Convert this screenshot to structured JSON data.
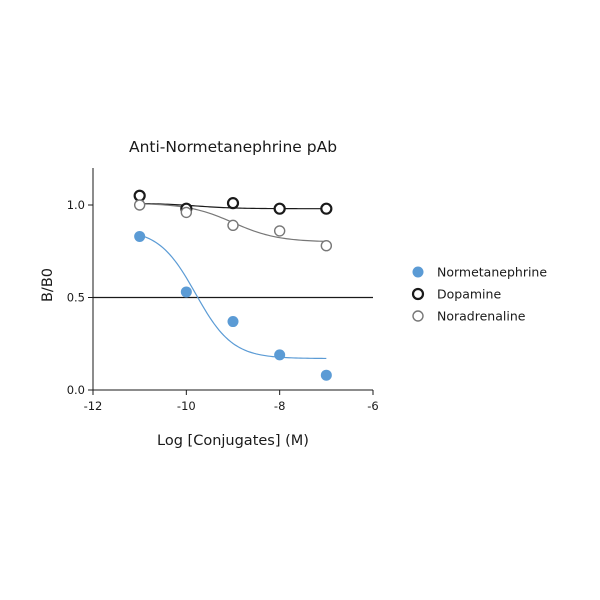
{
  "chart_data": {
    "type": "scatter",
    "title": "Anti-Normetanephrine pAb",
    "xlabel": "Log [Conjugates] (M)",
    "ylabel": "B/B0",
    "xlim": [
      -12,
      -6
    ],
    "ylim": [
      0,
      1.2
    ],
    "x_ticks": [
      -12,
      -10,
      -8,
      -6
    ],
    "x_tick_labels": [
      "-12",
      "-10",
      "-8",
      "-6"
    ],
    "y_ticks": [
      0,
      0.5,
      1.0
    ],
    "y_tick_labels": [
      "0.0",
      "0.5",
      "1.0"
    ],
    "reference_line": {
      "y": 0.5
    },
    "legend_position": "right",
    "series": [
      {
        "name": "Normetanephrine",
        "color": "#5b9bd5",
        "marker": "filled-circle",
        "x": [
          -11,
          -10,
          -9,
          -8,
          -7
        ],
        "y": [
          0.83,
          0.53,
          0.37,
          0.19,
          0.08
        ],
        "fit": {
          "bottom": 0.17,
          "top": 0.87,
          "logEC50": -9.8,
          "hill": 1.1,
          "x_range": [
            -11,
            -7
          ]
        }
      },
      {
        "name": "Dopamine",
        "color": "#1a1a1a",
        "marker": "open-circle-bold",
        "x": [
          -11,
          -10,
          -9,
          -8,
          -7
        ],
        "y": [
          1.05,
          0.98,
          1.01,
          0.98,
          0.98
        ],
        "fit": {
          "bottom": 0.98,
          "top": 1.01,
          "logEC50": -9.8,
          "hill": 1.0,
          "x_range": [
            -11,
            -7
          ]
        }
      },
      {
        "name": "Noradrenaline",
        "color": "#777777",
        "marker": "open-circle",
        "x": [
          -11,
          -10,
          -9,
          -8,
          -7
        ],
        "y": [
          1.0,
          0.96,
          0.89,
          0.86,
          0.78
        ],
        "fit": {
          "bottom": 0.8,
          "top": 1.01,
          "logEC50": -9.0,
          "hill": 0.9,
          "x_range": [
            -11,
            -7
          ]
        }
      }
    ]
  }
}
